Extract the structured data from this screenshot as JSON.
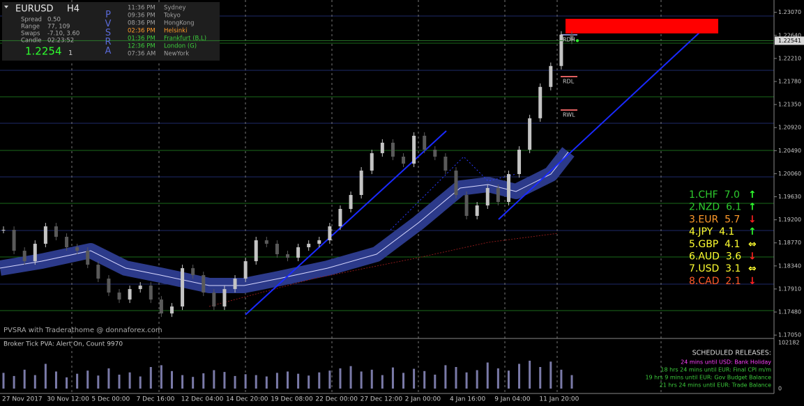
{
  "info_panel": {
    "symbol": "EURUSD",
    "timeframe": "H4",
    "rows": [
      [
        "Spread",
        "0.50"
      ],
      [
        "Range",
        "77, 109"
      ],
      [
        "Swaps",
        "-7.10, 3.60"
      ],
      [
        "Candle",
        "02:23:52"
      ]
    ],
    "price": "1.2254",
    "price_small": "1",
    "indicator": "PVSRA",
    "sessions": [
      [
        "11:36 PM",
        "Sydney"
      ],
      [
        "09:36 PM",
        "Tokyo"
      ],
      [
        "08:36 PM",
        "HongKong"
      ],
      [
        "02:36 PM",
        "Helsinki"
      ],
      [
        "01:36 PM",
        "Frankfurt  (B,L)"
      ],
      [
        "12:36 PM",
        "London  (G)"
      ],
      [
        "07:36 AM",
        "NewYork"
      ]
    ],
    "session_colors": [
      "#a0a0a0",
      "#a0a0a0",
      "#a0a0a0",
      "#ff9a2a",
      "#3ccc3c",
      "#3ccc3c",
      "#a0a0a0"
    ]
  },
  "chart_data": {
    "type": "candlestick",
    "closes": [
      1.19013,
      1.18623,
      1.18428,
      1.18753,
      1.19078,
      1.18883,
      1.18688,
      1.18623,
      1.18363,
      1.18103,
      1.17843,
      1.17713,
      1.17908,
      1.17973,
      1.17713,
      1.17453,
      1.17583,
      1.18298,
      1.18168,
      1.17843,
      1.17583,
      1.17908,
      1.18103,
      1.18428,
      1.18818,
      1.18753,
      1.18558,
      1.18493,
      1.18688,
      1.18753,
      1.18818,
      1.19078,
      1.19403,
      1.19663,
      1.20118,
      1.20443,
      1.20638,
      1.20378,
      1.20248,
      1.20768,
      1.20508,
      1.20378,
      1.20118,
      1.19663,
      1.19273,
      1.19468,
      1.19793,
      1.19533,
      1.20053,
      1.20508,
      1.21094,
      1.21679,
      1.22069,
      1.22654,
      1.22541
    ],
    "up_color": "#c4c4c4",
    "down_color": "#5a5a5a",
    "ylim": [
      1.17,
      1.233
    ],
    "yticks": [
      {
        "value": 1.2307,
        "label": "1.23070"
      },
      {
        "value": 1.2264,
        "label": "1.22640"
      },
      {
        "value": 1.2221,
        "label": "1.22210"
      },
      {
        "value": 1.2178,
        "label": "1.21780"
      },
      {
        "value": 1.2135,
        "label": "1.21350"
      },
      {
        "value": 1.2092,
        "label": "1.20920"
      },
      {
        "value": 1.2049,
        "label": "1.20490"
      },
      {
        "value": 1.2006,
        "label": "1.20060"
      },
      {
        "value": 1.1963,
        "label": "1.19630"
      },
      {
        "value": 1.192,
        "label": "1.19200"
      },
      {
        "value": 1.1877,
        "label": "1.18770"
      },
      {
        "value": 1.1834,
        "label": "1.18340"
      },
      {
        "value": 1.1791,
        "label": "1.17910"
      },
      {
        "value": 1.1748,
        "label": "1.17480"
      },
      {
        "value": 1.1705,
        "label": "1.17050"
      }
    ],
    "current_price": {
      "value": 1.22541,
      "label": "1.22541"
    },
    "x_axis_labels": [
      "27 Nov 2017",
      "30 Nov 12:00",
      "5 Dec 00:00",
      "7 Dec 16:00",
      "12 Dec 04:00",
      "14 Dec 20:00",
      "19 Dec 08:00",
      "22 Dec 00:00",
      "27 Dec 12:00",
      "2 Jan 00:00",
      "4 Jan 16:00",
      "9 Jan 04:00",
      "11 Jan 20:00"
    ],
    "footer": "PVSRA with Traderathome @ donnaforex.com",
    "levels": [
      "RDH",
      "RDL",
      "RWL"
    ]
  },
  "volume_data": {
    "type": "bar",
    "title": "Broker Tick PVA:   Alert On,  Count  9970",
    "values": [
      35000,
      28000,
      42000,
      30000,
      55000,
      38000,
      25000,
      33000,
      40000,
      29000,
      45000,
      31000,
      36000,
      27000,
      48000,
      52000,
      39000,
      30000,
      26000,
      34000,
      41000,
      37000,
      28000,
      32000,
      30000,
      27000,
      35000,
      38000,
      33000,
      29000,
      36000,
      40000,
      45000,
      50000,
      38000,
      42000,
      30000,
      47000,
      35000,
      44000,
      39000,
      31000,
      52000,
      48000,
      36000,
      41000,
      58000,
      45000,
      40000,
      55000,
      62000,
      48000,
      60000,
      42000,
      30000
    ],
    "color": "#7a7aa8",
    "ylim": [
      0,
      102182
    ],
    "yticks": [
      102182,
      0
    ]
  },
  "strength": [
    {
      "text": "1.CHF  7.0",
      "arrow": "↑",
      "color": "#2ecc2e",
      "arrow_color": "#2eff2e"
    },
    {
      "text": "2.NZD  6.1",
      "arrow": "↑",
      "color": "#2ecc2e",
      "arrow_color": "#2eff2e"
    },
    {
      "text": "3.EUR  5.7",
      "arrow": "↓",
      "color": "#ff9a2a",
      "arrow_color": "#ff2020"
    },
    {
      "text": "4.JPY  4.1",
      "arrow": "↑",
      "color": "#ffff30",
      "arrow_color": "#2eff2e"
    },
    {
      "text": "5.GBP  4.1",
      "arrow": "⇔",
      "color": "#ffff30",
      "arrow_color": "#ffff30"
    },
    {
      "text": "6.AUD  3.6",
      "arrow": "↓",
      "color": "#ffff30",
      "arrow_color": "#ff2020"
    },
    {
      "text": "7.USD  3.1",
      "arrow": "⇔",
      "color": "#ffff30",
      "arrow_color": "#ffff30"
    },
    {
      "text": "8.CAD  2.1",
      "arrow": "↓",
      "color": "#ff5a2a",
      "arrow_color": "#ff2020"
    }
  ],
  "releases": {
    "title": "SCHEDULED RELEASES:",
    "lines": [
      "24 mins until USD: Bank Holiday",
      "18 hrs 24 mins until EUR: Final CPI m/m",
      "19 hrs 9 mins until EUR: Gov Budget Balance",
      "21 hrs 24 mins until EUR: Trade Balance"
    ],
    "colors": [
      "#ff40ff",
      "#3ccc3c",
      "#3ccc3c",
      "#3ccc3c"
    ]
  }
}
